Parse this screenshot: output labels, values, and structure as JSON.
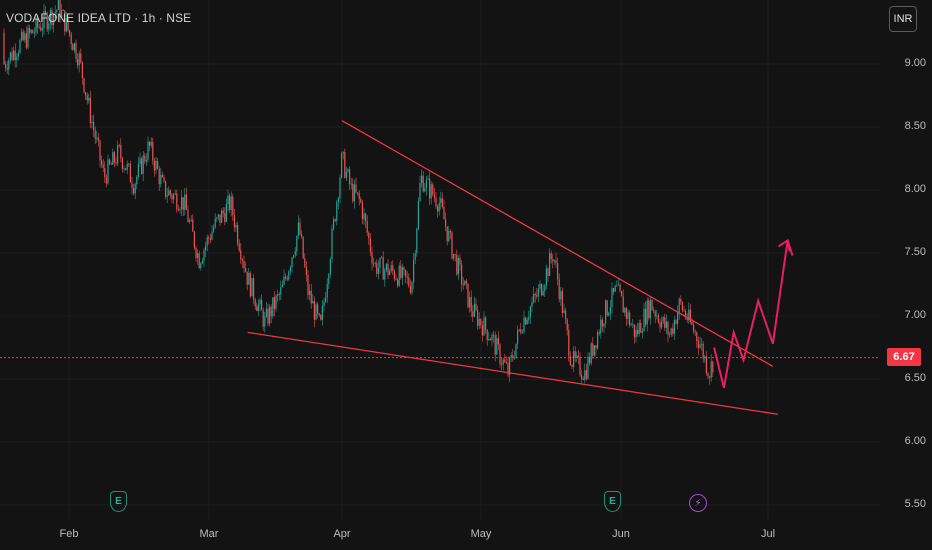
{
  "header": {
    "symbol_line": "VODAFONE IDEA LTD · 1h · NSE",
    "currency_button": "INR"
  },
  "price_axis": {
    "ticks": [
      "9.00",
      "8.50",
      "8.00",
      "7.50",
      "7.00",
      "6.50",
      "6.00",
      "5.50"
    ],
    "last_price": "6.67"
  },
  "time_axis": {
    "ticks": [
      "Feb",
      "Mar",
      "Apr",
      "May",
      "Jun",
      "Jul"
    ]
  },
  "event_markers": [
    {
      "label": "E",
      "kind": "earnings",
      "month": "Feb"
    },
    {
      "label": "E",
      "kind": "earnings",
      "month": "Jun"
    },
    {
      "label": "⚡",
      "kind": "dividend",
      "month": "Jun"
    }
  ],
  "colors": {
    "background": "#131313",
    "up": "#26a69a",
    "down": "#ef5350",
    "trendline": "#f23645",
    "projection": "#e91e63",
    "last_price_tag": "#f23645"
  },
  "chart_data": {
    "type": "candlestick",
    "timeframe": "1h",
    "ylim": [
      5.5,
      9.0
    ],
    "y_ticks": [
      9.0,
      8.5,
      8.0,
      7.5,
      7.0,
      6.5,
      6.0,
      5.5
    ],
    "x_ticks": [
      "Feb",
      "Mar",
      "Apr",
      "May",
      "Jun",
      "Jul"
    ],
    "last_price": 6.67,
    "price_path": [
      {
        "t": "Jan 10",
        "close": 9.25
      },
      {
        "t": "Jan 14",
        "close": 9.05
      },
      {
        "t": "Jan 18",
        "close": 8.95
      },
      {
        "t": "Jan 22",
        "close": 9.15
      },
      {
        "t": "Jan 26",
        "close": 9.3
      },
      {
        "t": "Jan 30",
        "close": 9.45
      },
      {
        "t": "Feb 3",
        "close": 9.05
      },
      {
        "t": "Feb 5",
        "close": 8.65
      },
      {
        "t": "Feb 8",
        "close": 8.1
      },
      {
        "t": "Feb 11",
        "close": 8.3
      },
      {
        "t": "Feb 14",
        "close": 8.05
      },
      {
        "t": "Feb 17",
        "close": 8.35
      },
      {
        "t": "Feb 20",
        "close": 8.0
      },
      {
        "t": "Feb 24",
        "close": 7.9
      },
      {
        "t": "Feb 27",
        "close": 7.45
      },
      {
        "t": "Mar 2",
        "close": 7.7
      },
      {
        "t": "Mar 6",
        "close": 7.9
      },
      {
        "t": "Mar 10",
        "close": 7.3
      },
      {
        "t": "Mar 14",
        "close": 6.95
      },
      {
        "t": "Mar 18",
        "close": 7.2
      },
      {
        "t": "Mar 22",
        "close": 7.7
      },
      {
        "t": "Mar 24",
        "close": 7.2
      },
      {
        "t": "Mar 27",
        "close": 6.9
      },
      {
        "t": "Apr 1",
        "close": 8.25
      },
      {
        "t": "Apr 3",
        "close": 8.0
      },
      {
        "t": "Apr 5",
        "close": 7.9
      },
      {
        "t": "Apr 8",
        "close": 7.4
      },
      {
        "t": "Apr 12",
        "close": 7.35
      },
      {
        "t": "Apr 16",
        "close": 7.25
      },
      {
        "t": "Apr 18",
        "close": 8.1
      },
      {
        "t": "Apr 22",
        "close": 7.9
      },
      {
        "t": "Apr 25",
        "close": 7.5
      },
      {
        "t": "Apr 29",
        "close": 7.05
      },
      {
        "t": "May 3",
        "close": 6.85
      },
      {
        "t": "May 7",
        "close": 6.55
      },
      {
        "t": "May 10",
        "close": 6.95
      },
      {
        "t": "May 14",
        "close": 7.2
      },
      {
        "t": "May 17",
        "close": 7.5
      },
      {
        "t": "May 21",
        "close": 6.65
      },
      {
        "t": "May 24",
        "close": 6.55
      },
      {
        "t": "May 28",
        "close": 7.0
      },
      {
        "t": "May 31",
        "close": 7.2
      },
      {
        "t": "Jun 4",
        "close": 6.85
      },
      {
        "t": "Jun 7",
        "close": 7.1
      },
      {
        "t": "Jun 11",
        "close": 6.85
      },
      {
        "t": "Jun 13",
        "close": 7.1
      },
      {
        "t": "Jun 17",
        "close": 6.8
      },
      {
        "t": "Jun 19",
        "close": 6.55
      },
      {
        "t": "Jun 20",
        "close": 6.67
      }
    ],
    "annotations": [
      {
        "name": "falling-wedge-upper",
        "kind": "trendline",
        "from": {
          "t": "Apr 1",
          "y": 8.55
        },
        "to": {
          "t": "Jul 2",
          "y": 6.6
        }
      },
      {
        "name": "falling-wedge-lower",
        "kind": "trendline",
        "from": {
          "t": "Mar 10",
          "y": 6.87
        },
        "to": {
          "t": "Jul 3",
          "y": 6.22
        }
      },
      {
        "name": "projected-path",
        "kind": "polyline",
        "points": [
          {
            "t": "Jun 20",
            "y": 6.75
          },
          {
            "t": "Jun 22",
            "y": 6.43
          },
          {
            "t": "Jun 24",
            "y": 6.87
          },
          {
            "t": "Jun 26",
            "y": 6.65
          },
          {
            "t": "Jun 29",
            "y": 7.12
          },
          {
            "t": "Jul 2",
            "y": 6.78
          },
          {
            "t": "Jul 5",
            "y": 7.6
          },
          {
            "t": "Jul 6",
            "y": 7.48
          }
        ]
      }
    ]
  }
}
